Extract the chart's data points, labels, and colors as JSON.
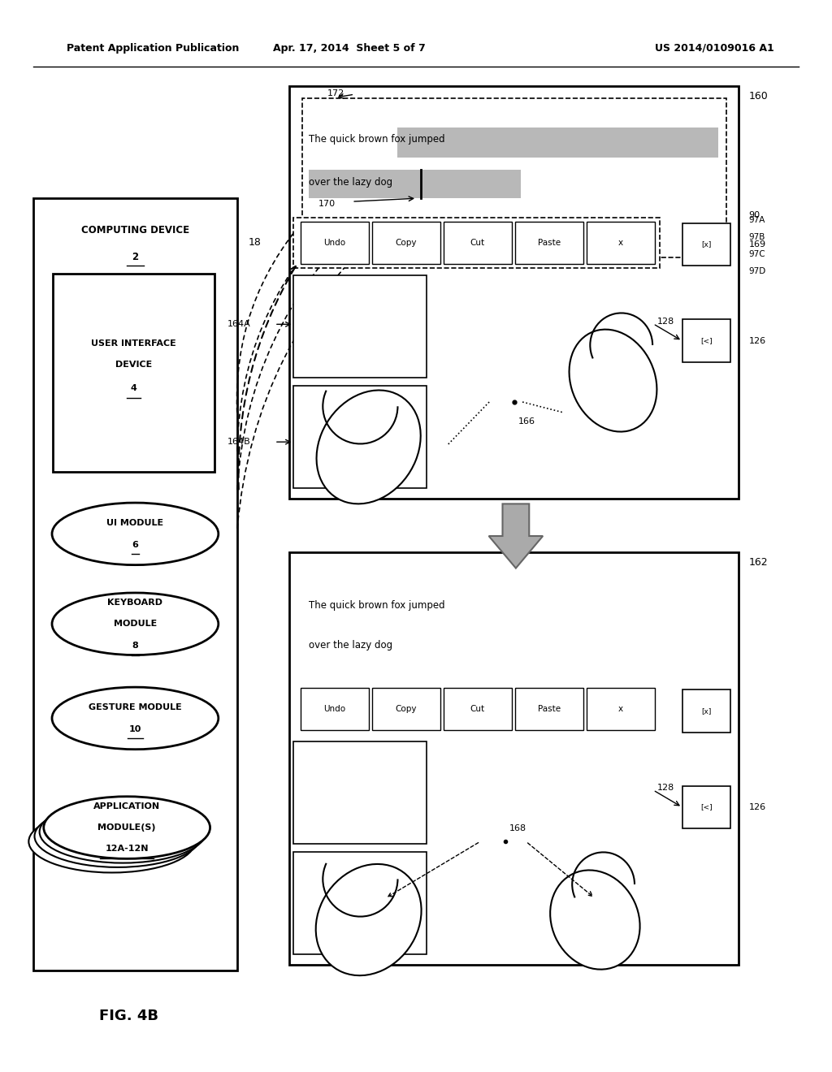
{
  "bg_color": "#ffffff",
  "header_left": "Patent Application Publication",
  "header_center": "Apr. 17, 2014  Sheet 5 of 7",
  "header_right": "US 2014/0109016 A1",
  "fig_label": "FIG. 4B",
  "buttons": [
    "Undo",
    "Copy",
    "Cut",
    "Paste",
    "x"
  ]
}
